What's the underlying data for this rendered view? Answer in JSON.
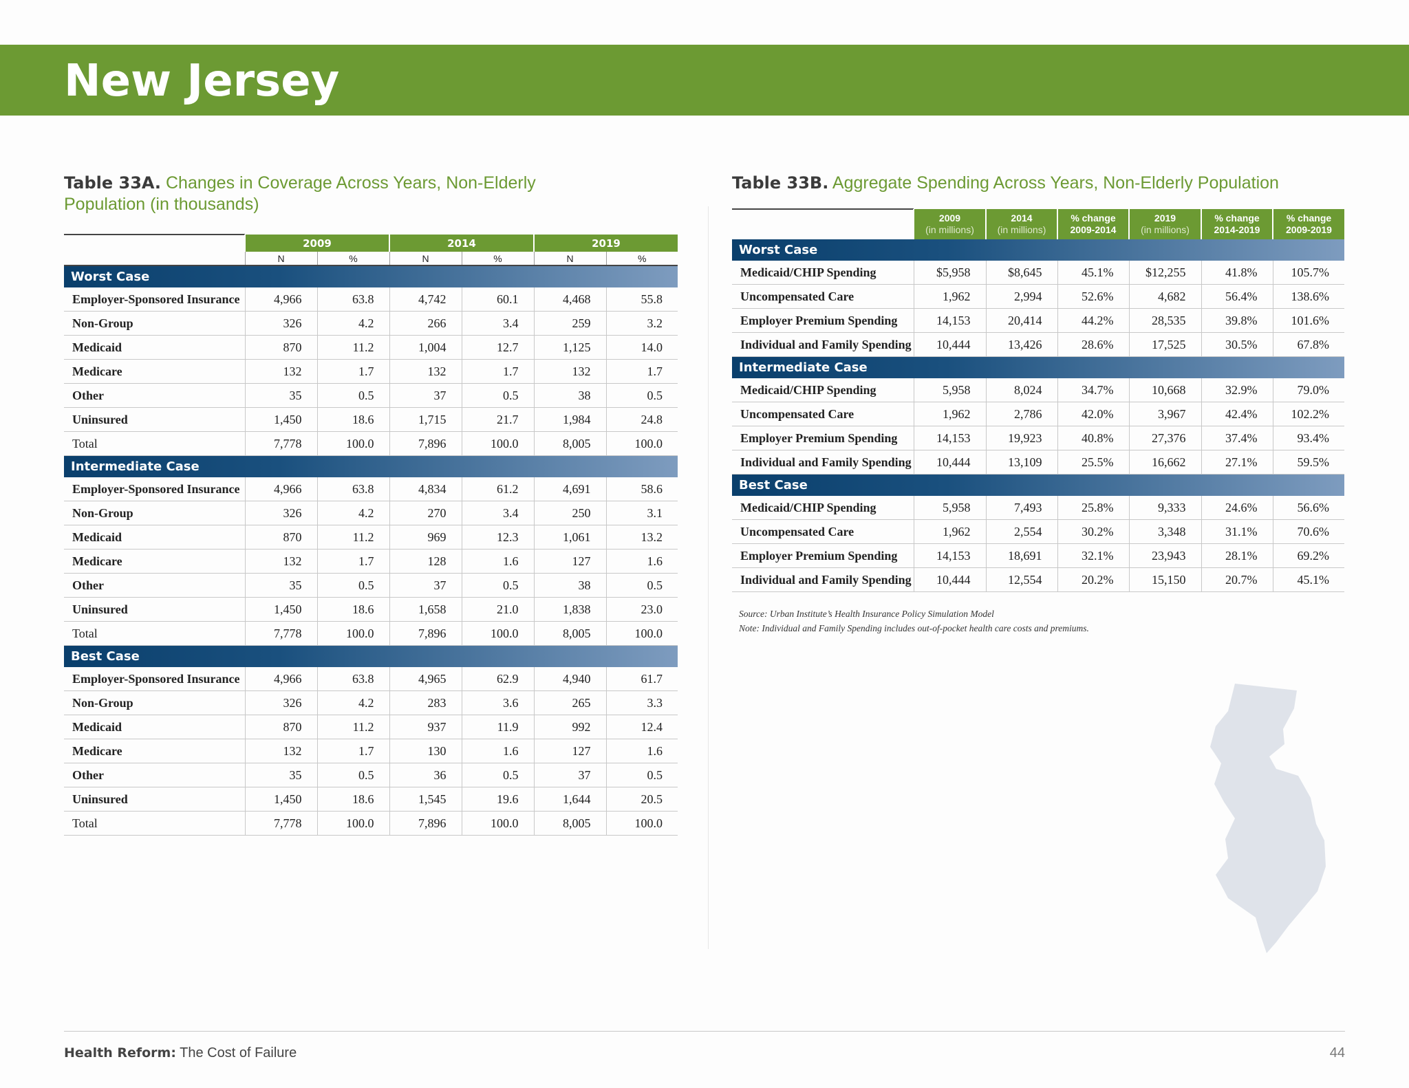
{
  "state_title": "New Jersey",
  "tableA": {
    "label": "Table 33A.",
    "caption_line1": "Changes in Coverage Across Years, Non-Elderly",
    "caption_line2": "Population (in thousands)",
    "years": [
      "2009",
      "2014",
      "2019"
    ],
    "subheaders": [
      "N",
      "%",
      "N",
      "%",
      "N",
      "%"
    ],
    "sections": [
      {
        "name": "Worst Case",
        "rows": [
          {
            "label": "Employer-Sponsored Insurance",
            "values": [
              "4,966",
              "63.8",
              "4,742",
              "60.1",
              "4,468",
              "55.8"
            ]
          },
          {
            "label": "Non-Group",
            "values": [
              "326",
              "4.2",
              "266",
              "3.4",
              "259",
              "3.2"
            ]
          },
          {
            "label": "Medicaid",
            "values": [
              "870",
              "11.2",
              "1,004",
              "12.7",
              "1,125",
              "14.0"
            ]
          },
          {
            "label": "Medicare",
            "values": [
              "132",
              "1.7",
              "132",
              "1.7",
              "132",
              "1.7"
            ]
          },
          {
            "label": "Other",
            "values": [
              "35",
              "0.5",
              "37",
              "0.5",
              "38",
              "0.5"
            ]
          },
          {
            "label": "Uninsured",
            "values": [
              "1,450",
              "18.6",
              "1,715",
              "21.7",
              "1,984",
              "24.8"
            ]
          },
          {
            "label": "Total",
            "values": [
              "7,778",
              "100.0",
              "7,896",
              "100.0",
              "8,005",
              "100.0"
            ]
          }
        ]
      },
      {
        "name": "Intermediate Case",
        "rows": [
          {
            "label": "Employer-Sponsored Insurance",
            "values": [
              "4,966",
              "63.8",
              "4,834",
              "61.2",
              "4,691",
              "58.6"
            ]
          },
          {
            "label": "Non-Group",
            "values": [
              "326",
              "4.2",
              "270",
              "3.4",
              "250",
              "3.1"
            ]
          },
          {
            "label": "Medicaid",
            "values": [
              "870",
              "11.2",
              "969",
              "12.3",
              "1,061",
              "13.2"
            ]
          },
          {
            "label": "Medicare",
            "values": [
              "132",
              "1.7",
              "128",
              "1.6",
              "127",
              "1.6"
            ]
          },
          {
            "label": "Other",
            "values": [
              "35",
              "0.5",
              "37",
              "0.5",
              "38",
              "0.5"
            ]
          },
          {
            "label": "Uninsured",
            "values": [
              "1,450",
              "18.6",
              "1,658",
              "21.0",
              "1,838",
              "23.0"
            ]
          },
          {
            "label": "Total",
            "values": [
              "7,778",
              "100.0",
              "7,896",
              "100.0",
              "8,005",
              "100.0"
            ]
          }
        ]
      },
      {
        "name": "Best Case",
        "rows": [
          {
            "label": "Employer-Sponsored Insurance",
            "values": [
              "4,966",
              "63.8",
              "4,965",
              "62.9",
              "4,940",
              "61.7"
            ]
          },
          {
            "label": "Non-Group",
            "values": [
              "326",
              "4.2",
              "283",
              "3.6",
              "265",
              "3.3"
            ]
          },
          {
            "label": "Medicaid",
            "values": [
              "870",
              "11.2",
              "937",
              "11.9",
              "992",
              "12.4"
            ]
          },
          {
            "label": "Medicare",
            "values": [
              "132",
              "1.7",
              "130",
              "1.6",
              "127",
              "1.6"
            ]
          },
          {
            "label": "Other",
            "values": [
              "35",
              "0.5",
              "36",
              "0.5",
              "37",
              "0.5"
            ]
          },
          {
            "label": "Uninsured",
            "values": [
              "1,450",
              "18.6",
              "1,545",
              "19.6",
              "1,644",
              "20.5"
            ]
          },
          {
            "label": "Total",
            "values": [
              "7,778",
              "100.0",
              "7,896",
              "100.0",
              "8,005",
              "100.0"
            ]
          }
        ]
      }
    ]
  },
  "tableB": {
    "label": "Table 33B.",
    "caption": "Aggregate Spending Across Years, Non-Elderly Population",
    "columns": [
      {
        "top": "2009",
        "bottom": "(in millions)",
        "kind": "year"
      },
      {
        "top": "2014",
        "bottom": "(in millions)",
        "kind": "year"
      },
      {
        "top": "% change",
        "bottom": "2009-2014",
        "kind": "pct"
      },
      {
        "top": "2019",
        "bottom": "(in millions)",
        "kind": "year"
      },
      {
        "top": "% change",
        "bottom": "2014-2019",
        "kind": "pct"
      },
      {
        "top": "% change",
        "bottom": "2009-2019",
        "kind": "pct"
      }
    ],
    "sections": [
      {
        "name": "Worst Case",
        "rows": [
          {
            "label": "Medicaid/CHIP Spending",
            "values": [
              "$5,958",
              "$8,645",
              "45.1%",
              "$12,255",
              "41.8%",
              "105.7%"
            ]
          },
          {
            "label": "Uncompensated Care",
            "values": [
              "1,962",
              "2,994",
              "52.6%",
              "4,682",
              "56.4%",
              "138.6%"
            ]
          },
          {
            "label": "Employer Premium Spending",
            "values": [
              "14,153",
              "20,414",
              "44.2%",
              "28,535",
              "39.8%",
              "101.6%"
            ]
          },
          {
            "label": "Individual and Family Spending",
            "values": [
              "10,444",
              "13,426",
              "28.6%",
              "17,525",
              "30.5%",
              "67.8%"
            ]
          }
        ]
      },
      {
        "name": "Intermediate Case",
        "rows": [
          {
            "label": "Medicaid/CHIP Spending",
            "values": [
              "5,958",
              "8,024",
              "34.7%",
              "10,668",
              "32.9%",
              "79.0%"
            ]
          },
          {
            "label": "Uncompensated Care",
            "values": [
              "1,962",
              "2,786",
              "42.0%",
              "3,967",
              "42.4%",
              "102.2%"
            ]
          },
          {
            "label": "Employer Premium Spending",
            "values": [
              "14,153",
              "19,923",
              "40.8%",
              "27,376",
              "37.4%",
              "93.4%"
            ]
          },
          {
            "label": "Individual and Family Spending",
            "values": [
              "10,444",
              "13,109",
              "25.5%",
              "16,662",
              "27.1%",
              "59.5%"
            ]
          }
        ]
      },
      {
        "name": "Best Case",
        "rows": [
          {
            "label": "Medicaid/CHIP Spending",
            "values": [
              "5,958",
              "7,493",
              "25.8%",
              "9,333",
              "24.6%",
              "56.6%"
            ]
          },
          {
            "label": "Uncompensated Care",
            "values": [
              "1,962",
              "2,554",
              "30.2%",
              "3,348",
              "31.1%",
              "70.6%"
            ]
          },
          {
            "label": "Employer Premium Spending",
            "values": [
              "14,153",
              "18,691",
              "32.1%",
              "23,943",
              "28.1%",
              "69.2%"
            ]
          },
          {
            "label": "Individual and Family Spending",
            "values": [
              "10,444",
              "12,554",
              "20.2%",
              "15,150",
              "20.7%",
              "45.1%"
            ]
          }
        ]
      }
    ],
    "source_note": "Source: Urban Institute’s Health Insurance Policy Simulation Model",
    "extra_note": "Note: Individual and Family Spending includes out-of-pocket health care costs and premiums."
  },
  "footer": {
    "bold": "Health Reform:",
    "text": " The Cost of Failure",
    "page": "44"
  },
  "colors": {
    "brand_green": "#6c9a33",
    "section_navy": "#0a3f6c",
    "map_fill": "#dfe3ea"
  }
}
